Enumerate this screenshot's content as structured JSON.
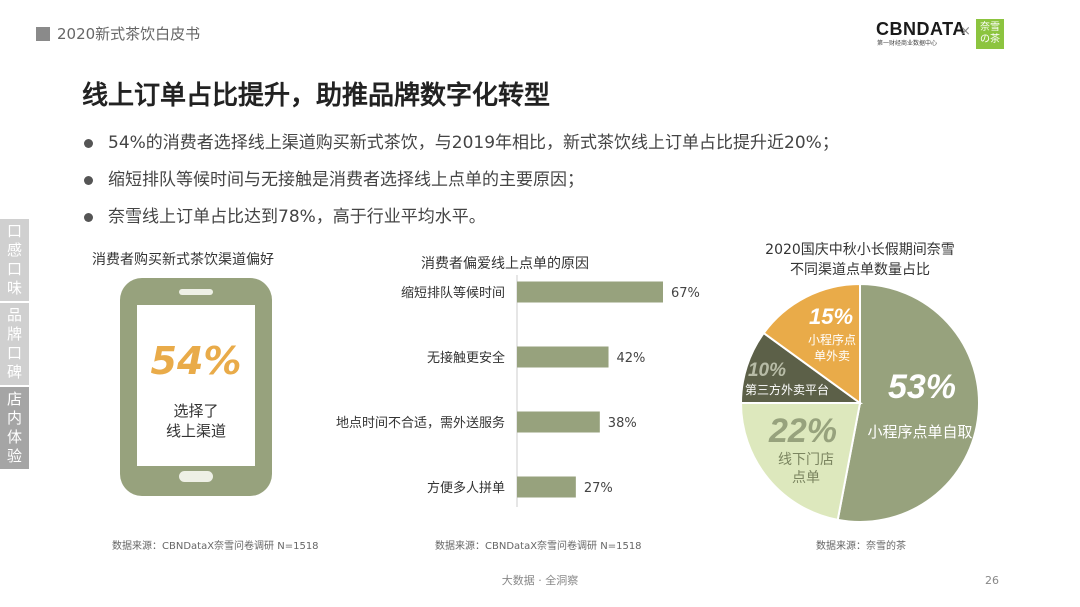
{
  "header": {
    "title": "2020新式茶饮白皮书",
    "logo_text": "CBNDATA",
    "logo_subtitle": "第一财经商业数据中心",
    "logo_times": "×",
    "partner_logo": "奈雪の茶"
  },
  "main_title": "线上订单占比提升，助推品牌数字化转型",
  "bullets": [
    "54%的消费者选择线上渠道购买新式茶饮，与2019年相比，新式茶饮线上订单占比提升近20%；",
    "缩短排队等候时间与无接触是消费者选择线上点单的主要原因；",
    "奈雪线上订单占比达到78%，高于行业平均水平。"
  ],
  "side_tabs": [
    {
      "label": "口感口味",
      "chars": [
        "口",
        "感",
        "口",
        "味"
      ]
    },
    {
      "label": "品牌口碑",
      "chars": [
        "品",
        "牌",
        "口",
        "碑"
      ]
    },
    {
      "label": "店内体验",
      "chars": [
        "店",
        "内",
        "体",
        "验"
      ]
    }
  ],
  "colors": {
    "olive": "#97a27d",
    "dark": "#5c6048",
    "orange": "#e9ab49",
    "light_green": "#dde8bd",
    "accent_text": "#e9ab49"
  },
  "icons": {
    "phone": "smartphone-icon",
    "bullet": "bullet-dot-icon"
  },
  "chart_data": [
    {
      "type": "table",
      "title": "消费者购买新式茶饮渠道偏好",
      "value_label": "54%",
      "value": 54,
      "text_line1": "选择了",
      "text_line2": "线上渠道",
      "source": "数据来源：CBNDataX奈雪问卷调研 N=1518"
    },
    {
      "type": "bar",
      "orientation": "horizontal",
      "title": "消费者偏爱线上点单的原因",
      "categories": [
        "缩短排队等候时间",
        "无接触更安全",
        "地点时间不合适，需外送服务",
        "方便多人拼单"
      ],
      "values": [
        67,
        42,
        38,
        27
      ],
      "value_labels": [
        "67%",
        "42%",
        "38%",
        "27%"
      ],
      "xlim": [
        0,
        67
      ],
      "grid": false,
      "source": "数据来源：CBNDataX奈雪问卷调研 N=1518"
    },
    {
      "type": "pie",
      "title_line1": "2020国庆中秋小长假期间奈雪",
      "title_line2": "不同渠道点单数量占比",
      "slices": [
        {
          "label": "小程序点单自取",
          "value": 53,
          "value_label": "53%",
          "color": "#97a27d",
          "label_color": "#ffffff",
          "value_color": "#ffffff"
        },
        {
          "label": "线下门店点单",
          "value": 22,
          "value_label": "22%",
          "color": "#dde8bd",
          "label_color": "#7b8560",
          "value_color": "#97a27d"
        },
        {
          "label": "第三方外卖平台",
          "value": 10,
          "value_label": "10%",
          "color": "#5c6048",
          "label_color": "#ffffff",
          "value_color": "#b7bba6"
        },
        {
          "label": "小程序点单外卖",
          "value": 15,
          "value_label": "15%",
          "color": "#e9ab49",
          "label_color": "#ffffff",
          "value_color": "#ffffff"
        }
      ],
      "source": "数据来源：奈雪的茶"
    }
  ],
  "footer": {
    "text": "大数据 · 全洞察",
    "page": "26"
  }
}
